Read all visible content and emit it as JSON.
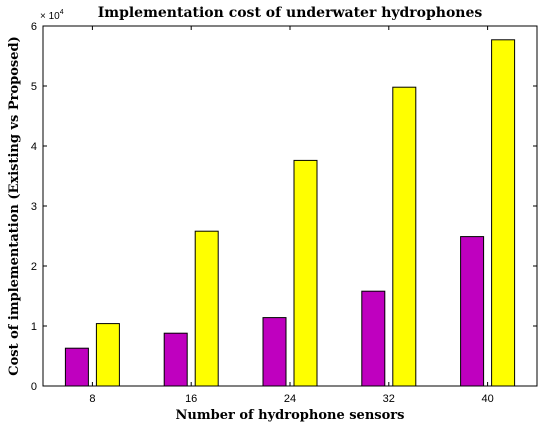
{
  "chart_data": {
    "type": "bar",
    "title": "Implementation cost of underwater hydrophones",
    "xlabel": "Number of hydrophone sensors",
    "ylabel": "Cost of implementation (Existing vs Proposed)",
    "categories": [
      "8",
      "16",
      "24",
      "32",
      "40"
    ],
    "series": [
      {
        "color": "#bf00bf",
        "values": [
          6300,
          8800,
          11400,
          15800,
          24900
        ]
      },
      {
        "color": "#ffff00",
        "values": [
          10400,
          25800,
          37600,
          49800,
          57700
        ]
      }
    ],
    "ylim": [
      0,
      60000
    ],
    "y_ticks": [
      0,
      1,
      2,
      3,
      4,
      5,
      6
    ],
    "y_exponent": {
      "base": "× 10",
      "power": "4"
    },
    "grid": false,
    "legend": "none"
  }
}
